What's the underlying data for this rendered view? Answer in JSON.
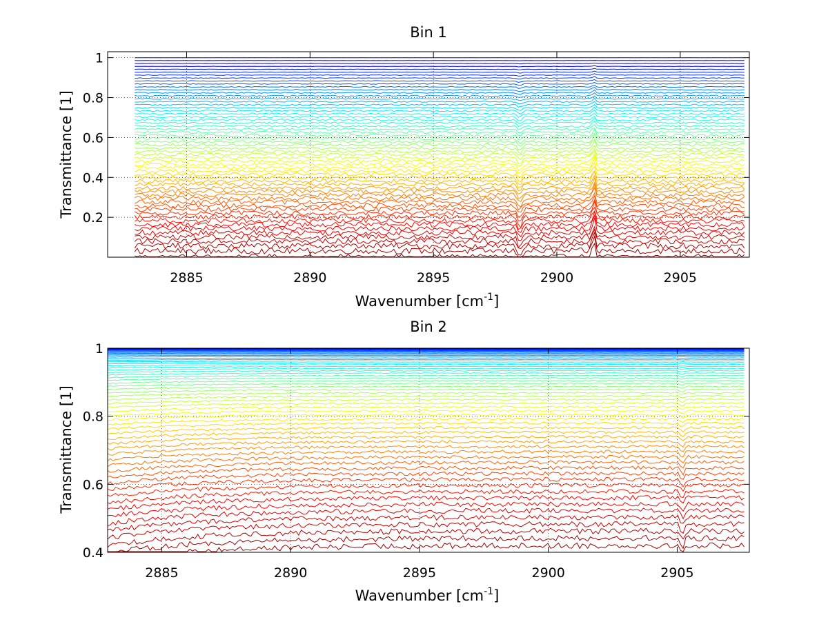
{
  "chart_data": [
    {
      "type": "line",
      "title": "Bin 1",
      "xlabel": "Wavenumber [cm",
      "xlabel_sup": "-1",
      "xlabel_end": "]",
      "ylabel": "Transmittance [1]",
      "xlim": [
        2881.8,
        2907.8
      ],
      "ylim": [
        0.0,
        1.03
      ],
      "grid": true,
      "x_ticks": [
        2885,
        2890,
        2895,
        2900,
        2905
      ],
      "x_tick_labels": [
        "2885",
        "2890",
        "2895",
        "2900",
        "2905"
      ],
      "y_ticks": [
        0.2,
        0.4,
        0.6,
        0.8,
        1
      ],
      "y_tick_labels": [
        "0.2",
        "0.4",
        "0.6",
        "0.8",
        "1"
      ],
      "x_range": [
        2882.9,
        2907.6
      ],
      "n_series": 60,
      "series_levels_range": [
        0.0,
        1.0
      ],
      "features": [
        {
          "x": 2898.5,
          "note": "absorption feature"
        },
        {
          "x": 2901.5,
          "note": "peak near top"
        }
      ]
    },
    {
      "type": "line",
      "title": "Bin 2",
      "xlabel": "Wavenumber [cm",
      "xlabel_sup": "-1",
      "xlabel_end": "]",
      "ylabel": "Transmittance [1]",
      "xlim": [
        2882.9,
        2907.8
      ],
      "ylim": [
        0.4,
        1.0
      ],
      "grid": true,
      "x_ticks": [
        2885,
        2890,
        2895,
        2900,
        2905
      ],
      "x_tick_labels": [
        "2885",
        "2890",
        "2895",
        "2900",
        "2905"
      ],
      "y_ticks": [
        0.4,
        0.6,
        0.8,
        1
      ],
      "y_tick_labels": [
        "0.4",
        "0.6",
        "0.8",
        "1"
      ],
      "x_range": [
        2882.9,
        2907.6
      ],
      "n_series": 60,
      "series_levels_range": [
        0.42,
        1.0
      ],
      "features": [
        {
          "x": 2905.2,
          "note": "absorption dip"
        }
      ]
    }
  ]
}
